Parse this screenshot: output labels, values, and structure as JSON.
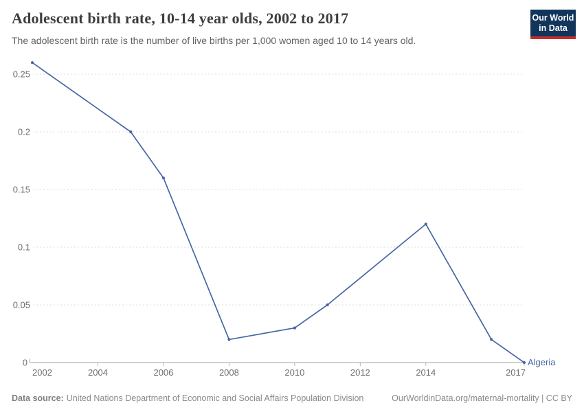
{
  "header": {
    "title": "Adolescent birth rate, 10-14 year olds, 2002 to 2017",
    "subtitle": "The adolescent birth rate is the number of live births per 1,000 women aged 10 to 14 years old.",
    "logo": {
      "line1": "Our World",
      "line2": "in Data",
      "bg_color": "#12355c",
      "accent_color": "#c82d28"
    }
  },
  "chart_data": {
    "type": "line",
    "title": "Adolescent birth rate, 10-14 year olds, 2002 to 2017",
    "xlabel": "",
    "ylabel": "",
    "xlim": [
      2002,
      2017
    ],
    "ylim": [
      0,
      0.26
    ],
    "grid": "horizontal-dashed",
    "legend_position": "end-of-line-label",
    "x_ticks": [
      2002,
      2004,
      2006,
      2008,
      2010,
      2012,
      2014,
      2017
    ],
    "y_ticks": [
      0,
      0.05,
      0.1,
      0.15,
      0.2,
      0.25
    ],
    "y_tick_labels": [
      "0",
      "0.05",
      "0.1",
      "0.15",
      "0.2",
      "0.25"
    ],
    "series": [
      {
        "name": "Algeria",
        "color": "#4766a4",
        "x": [
          2002,
          2005,
          2006,
          2008,
          2010,
          2011,
          2014,
          2016,
          2017
        ],
        "values": [
          0.26,
          0.2,
          0.16,
          0.02,
          0.03,
          0.05,
          0.12,
          0.02,
          0
        ]
      }
    ]
  },
  "footer": {
    "datasource_label": "Data source:",
    "datasource": "United Nations Department of Economic and Social Affairs Population Division",
    "attribution": "OurWorldinData.org/maternal-mortality | CC BY"
  }
}
